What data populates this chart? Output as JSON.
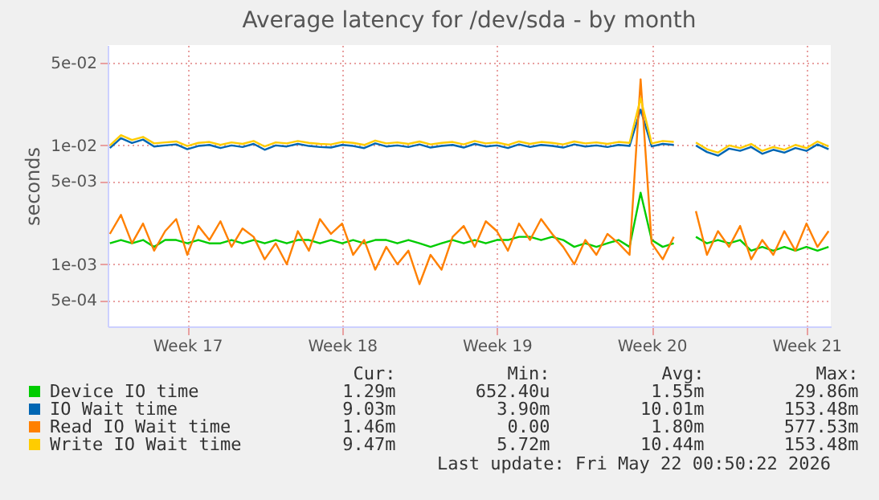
{
  "chart_data": {
    "type": "line",
    "title": "Average latency for /dev/sda - by month",
    "ylabel": "seconds",
    "log": "y",
    "grid": true,
    "legend": "bottom",
    "marker": "none",
    "line_style": "solid",
    "categories": [
      null,
      null,
      null,
      null,
      null,
      null,
      null,
      "Week 17",
      null,
      null,
      null,
      null,
      null,
      null,
      null,
      null,
      null,
      null,
      null,
      null,
      null,
      "Week 18",
      null,
      null,
      null,
      null,
      null,
      null,
      null,
      null,
      null,
      null,
      null,
      null,
      null,
      "Week 19",
      null,
      null,
      null,
      null,
      null,
      null,
      null,
      null,
      null,
      null,
      null,
      null,
      null,
      "Week 20",
      null,
      null,
      null,
      null,
      null,
      null,
      null,
      null,
      null,
      null,
      null,
      null,
      null,
      "Week 21",
      null,
      null
    ],
    "ylim": [
      0.0003,
      0.07
    ],
    "yticks": [
      {
        "value": 0.05,
        "label": "5e-02"
      },
      {
        "value": 0.01,
        "label": "1e-02"
      },
      {
        "value": 0.005,
        "label": "5e-03"
      },
      {
        "value": 0.001,
        "label": "1e-03"
      },
      {
        "value": 0.0005,
        "label": "5e-04"
      }
    ],
    "series": [
      {
        "name": "Device IO time",
        "color": "#00cc00",
        "values": [
          0.0015,
          0.0016,
          0.0015,
          0.0016,
          0.0014,
          0.0016,
          0.0016,
          0.0015,
          0.0016,
          0.0015,
          0.0015,
          0.0016,
          0.0015,
          0.0016,
          0.0015,
          0.0016,
          0.0015,
          0.0016,
          0.0016,
          0.0015,
          0.0016,
          0.0015,
          0.0016,
          0.0015,
          0.0016,
          0.0016,
          0.0015,
          0.0016,
          0.0015,
          0.0014,
          0.0015,
          0.0016,
          0.0015,
          0.0016,
          0.0015,
          0.0016,
          0.0016,
          0.0017,
          0.0017,
          0.0016,
          0.0017,
          0.0016,
          0.0014,
          0.0015,
          0.0014,
          0.0015,
          0.0016,
          0.0014,
          0.004,
          0.0016,
          0.0014,
          0.0015,
          null,
          0.0017,
          0.0015,
          0.0016,
          0.0015,
          0.0016,
          0.0013,
          0.0014,
          0.0013,
          0.0014,
          0.0013,
          0.0014,
          0.0013,
          0.0014
        ]
      },
      {
        "name": "IO Wait time",
        "color": "#0066b3",
        "values": [
          0.0095,
          0.0115,
          0.0105,
          0.0112,
          0.0098,
          0.01,
          0.0102,
          0.0093,
          0.0099,
          0.0101,
          0.0095,
          0.01,
          0.0097,
          0.0103,
          0.0092,
          0.01,
          0.0098,
          0.0103,
          0.0099,
          0.0097,
          0.0096,
          0.0101,
          0.0099,
          0.0095,
          0.0104,
          0.0098,
          0.01,
          0.0097,
          0.0102,
          0.0096,
          0.0099,
          0.0101,
          0.0096,
          0.0103,
          0.0098,
          0.01,
          0.0095,
          0.0102,
          0.0097,
          0.0101,
          0.0099,
          0.0096,
          0.0102,
          0.0098,
          0.01,
          0.0097,
          0.0101,
          0.0099,
          0.02,
          0.0098,
          0.0103,
          0.0101,
          null,
          0.01,
          0.0088,
          0.0082,
          0.0094,
          0.009,
          0.0097,
          0.0085,
          0.0092,
          0.0087,
          0.0095,
          0.009,
          0.0102,
          0.0093
        ]
      },
      {
        "name": "Read IO Wait time",
        "color": "#ff8000",
        "values": [
          0.0018,
          0.0026,
          0.0015,
          0.0022,
          0.0013,
          0.0019,
          0.0024,
          0.0012,
          0.0021,
          0.0016,
          0.0023,
          0.0014,
          0.002,
          0.0017,
          0.0011,
          0.0015,
          0.001,
          0.0019,
          0.0013,
          0.0024,
          0.0018,
          0.0022,
          0.0012,
          0.0016,
          0.0009,
          0.0014,
          0.001,
          0.0013,
          0.00068,
          0.0012,
          0.0009,
          0.0017,
          0.0021,
          0.0014,
          0.0023,
          0.0019,
          0.0013,
          0.0022,
          0.0016,
          0.0024,
          0.0018,
          0.0014,
          0.001,
          0.0016,
          0.0012,
          0.0018,
          0.0015,
          0.0012,
          0.036,
          0.0015,
          0.0011,
          0.0017,
          null,
          0.0028,
          0.0012,
          0.0019,
          0.0014,
          0.0021,
          0.0011,
          0.0016,
          0.0012,
          0.0019,
          0.0013,
          0.0022,
          0.0014,
          0.0019
        ]
      },
      {
        "name": "Write IO Wait time",
        "color": "#ffcc00",
        "values": [
          0.01,
          0.0122,
          0.0111,
          0.0118,
          0.0104,
          0.0106,
          0.0108,
          0.0099,
          0.0105,
          0.0107,
          0.0101,
          0.0106,
          0.0103,
          0.0109,
          0.0098,
          0.0106,
          0.0104,
          0.0109,
          0.0105,
          0.0103,
          0.0102,
          0.0107,
          0.0105,
          0.0101,
          0.011,
          0.0104,
          0.0106,
          0.0103,
          0.0108,
          0.0102,
          0.0105,
          0.0107,
          0.0102,
          0.0109,
          0.0104,
          0.0106,
          0.0101,
          0.0108,
          0.0103,
          0.0107,
          0.0105,
          0.0102,
          0.0108,
          0.0104,
          0.0106,
          0.0103,
          0.0107,
          0.0105,
          0.025,
          0.0104,
          0.0109,
          0.0107,
          null,
          0.0106,
          0.0093,
          0.0087,
          0.01,
          0.0095,
          0.0103,
          0.009,
          0.0097,
          0.0092,
          0.0101,
          0.0095,
          0.0108,
          0.0098
        ]
      }
    ],
    "annotations": [
      "Cur:",
      "Min:",
      "Avg:",
      "Max:",
      "1.29m",
      "652.40u",
      "1.55m",
      "29.86m",
      "9.03m",
      "3.90m",
      "10.01m",
      "153.48m",
      "1.46m",
      "0.00",
      "1.80m",
      "577.53m",
      "9.47m",
      "5.72m",
      "10.44m",
      "153.48m",
      "Last update: Fri May 22 00:50:22 2026"
    ]
  }
}
